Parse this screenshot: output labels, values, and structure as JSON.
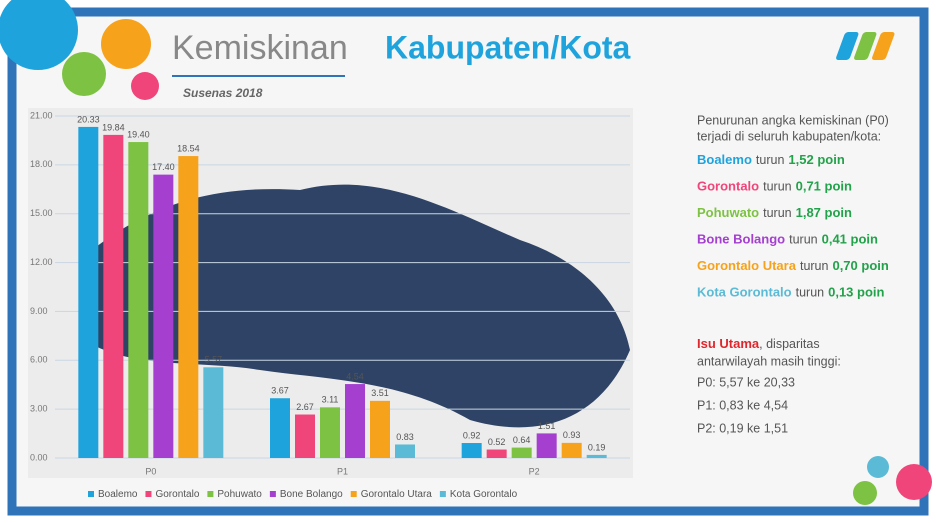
{
  "chart_data": {
    "type": "bar",
    "title_light": "Kemiskinan",
    "title_bold": "Kabupaten/Kota",
    "subtitle": "Susenas 2018",
    "categories": [
      "P0",
      "P1",
      "P2"
    ],
    "series": [
      {
        "name": "Boalemo",
        "color": "#1fa3dc",
        "values": [
          20.33,
          3.67,
          0.92
        ],
        "value_labels": [
          "20.33",
          "3.67",
          "0.92"
        ]
      },
      {
        "name": "Gorontalo",
        "color": "#f0457a",
        "values": [
          19.84,
          2.67,
          0.52
        ],
        "value_labels": [
          "19.84",
          "2.67",
          "0.52"
        ]
      },
      {
        "name": "Pohuwato",
        "color": "#7dc242",
        "values": [
          19.4,
          3.11,
          0.64
        ],
        "value_labels": [
          "19.40",
          "3.11",
          "0.64"
        ]
      },
      {
        "name": "Bone Bolango",
        "color": "#a43fd0",
        "values": [
          17.4,
          4.54,
          1.51
        ],
        "value_labels": [
          "17.40",
          "4.54",
          "1.51"
        ]
      },
      {
        "name": "Gorontalo Utara",
        "color": "#f7a21b",
        "values": [
          18.54,
          3.51,
          0.93
        ],
        "value_labels": [
          "18.54",
          "3.51",
          "0.93"
        ]
      },
      {
        "name": "Kota Gorontalo",
        "color": "#5bbbd6",
        "values": [
          5.57,
          0.83,
          0.19
        ],
        "value_labels": [
          "5.57",
          "0.83",
          "0.19"
        ]
      }
    ],
    "ylim": [
      0,
      21
    ],
    "yticks": [
      {
        "value": 0,
        "label": "0.00"
      },
      {
        "value": 3,
        "label": "3.00"
      },
      {
        "value": 6,
        "label": "6.00"
      },
      {
        "value": 9,
        "label": "9.00"
      },
      {
        "value": 12,
        "label": "12.00"
      },
      {
        "value": 15,
        "label": "15.00"
      },
      {
        "value": 18,
        "label": "18.00"
      },
      {
        "value": 21,
        "label": "21.00"
      }
    ],
    "grid": true,
    "legend": "bottom"
  },
  "panel": {
    "intro": [
      "Penurunan angka kemiskinan (P0)",
      "terjadi di seluruh kabupaten/kota:"
    ],
    "items": [
      {
        "name": "Boalemo",
        "text": "turun",
        "amount": "1,52 poin",
        "color": "#1fa3dc"
      },
      {
        "name": "Gorontalo",
        "text": "turun",
        "amount": "0,71 poin",
        "color": "#f0457a"
      },
      {
        "name": "Pohuwato",
        "text": "turun",
        "amount": "1,87 poin",
        "color": "#7dc242"
      },
      {
        "name": "Bone Bolango",
        "text": "turun",
        "amount": "0,41 poin",
        "color": "#a43fd0"
      },
      {
        "name": "Gorontalo Utara",
        "text": "turun",
        "amount": "0,70 poin",
        "color": "#f7a21b"
      },
      {
        "name": "Kota Gorontalo",
        "text": "turun",
        "amount": "0,13 poin",
        "color": "#5bbbd6"
      }
    ],
    "issue_title": "Isu Utama",
    "issue_text": ", disparitas",
    "issue_line2": "antarwilayah masih tinggi:",
    "facts": [
      "P0: 5,57 ke 20,33",
      "P1: 0,83 ke 4,54",
      "P2: 0,19 ke 1,51"
    ]
  }
}
